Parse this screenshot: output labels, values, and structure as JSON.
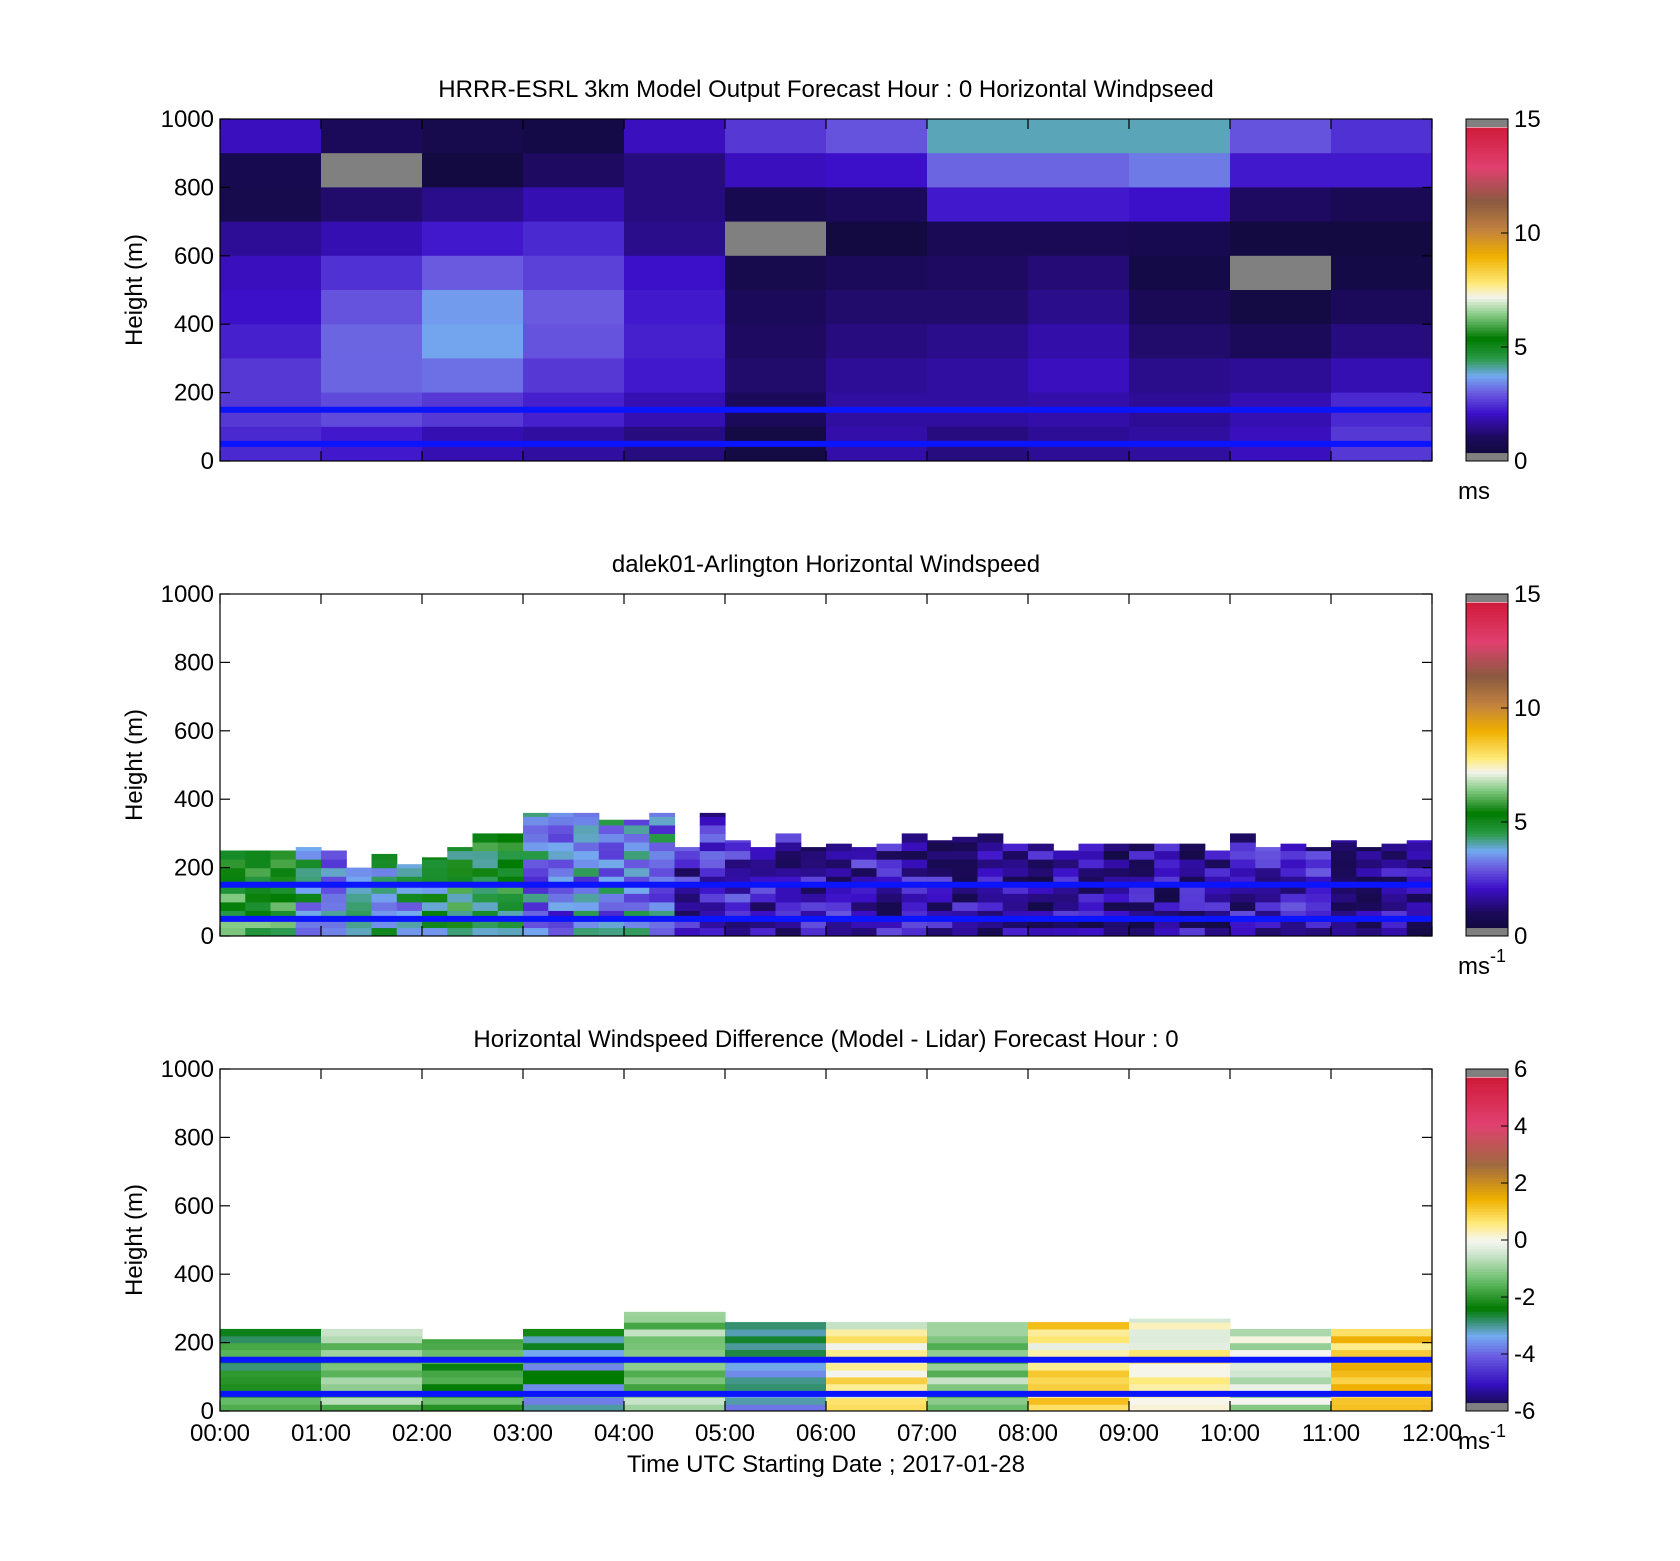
{
  "chart_data": [
    {
      "type": "heatmap",
      "title": "HRRR-ESRL 3km Model Output   Forecast Hour : 0 Horizontal Windpseed",
      "ylabel": "Height (m)",
      "ylim": [
        0,
        1000
      ],
      "yticks": [
        "0",
        "200",
        "400",
        "600",
        "800",
        "1000"
      ],
      "x_hours": [
        0,
        12
      ],
      "xtick_labels": [],
      "colorbar": {
        "min": 0,
        "max": 15,
        "ticks": [
          "0",
          "5",
          "10",
          "15"
        ],
        "unit": "ms",
        "unit_exp": "",
        "palette": "speed"
      },
      "reference_lines": [
        150,
        50
      ],
      "rows": [
        {
          "z0": 900,
          "z1": 1000,
          "v": [
            2.0,
            1.0,
            0.7,
            0.6,
            2.0,
            2.6,
            2.9,
            4.0,
            4.0,
            4.0,
            2.9,
            2.5
          ]
        },
        {
          "z0": 800,
          "z1": 900,
          "v": [
            0.8,
            null,
            0.4,
            1.1,
            1.4,
            2.0,
            2.1,
            3.1,
            3.1,
            3.3,
            2.2,
            2.2
          ]
        },
        {
          "z0": 700,
          "z1": 800,
          "v": [
            0.7,
            1.2,
            1.5,
            1.9,
            1.4,
            0.8,
            1.0,
            2.2,
            2.2,
            2.1,
            1.1,
            0.9
          ]
        },
        {
          "z0": 600,
          "z1": 700,
          "v": [
            1.6,
            1.9,
            2.2,
            2.4,
            1.5,
            null,
            0.4,
            0.9,
            0.9,
            0.8,
            0.4,
            0.4
          ]
        },
        {
          "z0": 500,
          "z1": 600,
          "v": [
            2.0,
            2.5,
            3.0,
            2.7,
            2.1,
            0.7,
            1.0,
            1.1,
            1.3,
            0.6,
            null,
            0.6
          ]
        },
        {
          "z0": 400,
          "z1": 500,
          "v": [
            2.1,
            2.9,
            3.6,
            3.0,
            2.2,
            1.0,
            1.2,
            1.2,
            1.5,
            0.9,
            0.5,
            1.0
          ]
        },
        {
          "z0": 300,
          "z1": 400,
          "v": [
            2.3,
            3.1,
            3.7,
            2.9,
            2.3,
            1.1,
            1.4,
            1.5,
            1.8,
            1.2,
            1.0,
            1.4
          ]
        },
        {
          "z0": 200,
          "z1": 300,
          "v": [
            2.6,
            3.1,
            3.2,
            2.6,
            2.2,
            1.2,
            1.6,
            1.7,
            2.0,
            1.5,
            1.6,
            1.9
          ]
        },
        {
          "z0": 100,
          "z1": 200,
          "v": [
            2.6,
            2.8,
            2.6,
            2.3,
            1.9,
            1.0,
            1.7,
            1.7,
            1.8,
            1.6,
            1.9,
            2.4
          ]
        },
        {
          "z0": 0,
          "z1": 100,
          "v": [
            2.4,
            2.2,
            1.9,
            1.7,
            1.4,
            0.5,
            1.8,
            1.4,
            1.6,
            1.7,
            2.0,
            2.6
          ]
        }
      ]
    },
    {
      "type": "heatmap",
      "title": "dalek01-Arlington  Horizontal Windspeed",
      "ylabel": "Height (m)",
      "ylim": [
        0,
        1000
      ],
      "yticks": [
        "0",
        "200",
        "400",
        "600",
        "800",
        "1000"
      ],
      "x_hours": [
        0,
        12
      ],
      "xtick_labels": [],
      "colorbar": {
        "min": 0,
        "max": 15,
        "ticks": [
          "0",
          "5",
          "10",
          "15"
        ],
        "unit": "ms",
        "unit_exp": "-1",
        "palette": "speed"
      },
      "reference_lines": [
        150,
        50
      ],
      "bins_per_hour": 4,
      "bin_top": [
        250,
        250,
        250,
        260,
        250,
        200,
        240,
        210,
        230,
        260,
        300,
        300,
        360,
        360,
        360,
        340,
        340,
        360,
        260,
        360,
        280,
        260,
        300,
        260,
        270,
        260,
        270,
        300,
        280,
        290,
        300,
        270,
        270,
        250,
        270,
        270,
        270,
        270,
        270,
        250,
        300,
        260,
        270,
        260,
        280,
        260,
        270,
        280
      ],
      "bin_speed": [
        5.5,
        5.5,
        5.5,
        4.0,
        3.5,
        3.5,
        4.0,
        4.0,
        4.5,
        5.0,
        5.0,
        5.0,
        3.5,
        3.0,
        3.5,
        3.5,
        3.5,
        3.5,
        2.0,
        2.3,
        2.2,
        2.0,
        2.0,
        2.0,
        2.0,
        2.0,
        1.8,
        1.8,
        1.8,
        1.8,
        1.8,
        1.8,
        1.6,
        1.6,
        1.6,
        1.6,
        1.6,
        1.6,
        1.6,
        1.6,
        1.8,
        2.0,
        2.0,
        1.9,
        1.8,
        1.8,
        1.7,
        1.7
      ]
    },
    {
      "type": "heatmap",
      "title": "Horizontal Windspeed Difference (Model - Lidar) Forecast Hour : 0",
      "ylabel": "Height (m)",
      "xlabel": "Time UTC  Starting Date ; 2017-01-28",
      "ylim": [
        0,
        1000
      ],
      "yticks": [
        "0",
        "200",
        "400",
        "600",
        "800",
        "1000"
      ],
      "x_hours": [
        0,
        12
      ],
      "xtick_labels": [
        "00:00",
        "01:00",
        "02:00",
        "03:00",
        "04:00",
        "05:00",
        "06:00",
        "07:00",
        "08:00",
        "09:00",
        "10:00",
        "11:00",
        "12:00"
      ],
      "colorbar": {
        "min": -6,
        "max": 6,
        "ticks": [
          "-6",
          "-4",
          "-2",
          "0",
          "2",
          "4",
          "6"
        ],
        "unit": "ms",
        "unit_exp": "-1",
        "palette": "diff"
      },
      "reference_lines": [
        150,
        50
      ],
      "column_top": [
        240,
        240,
        210,
        240,
        290,
        260,
        260,
        260,
        260,
        270,
        240,
        240
      ],
      "column_diff": [
        -2.2,
        -1.2,
        -1.8,
        -3.0,
        -1.2,
        -3.2,
        0.2,
        -1.2,
        0.6,
        0.2,
        -0.4,
        0.8
      ]
    }
  ]
}
